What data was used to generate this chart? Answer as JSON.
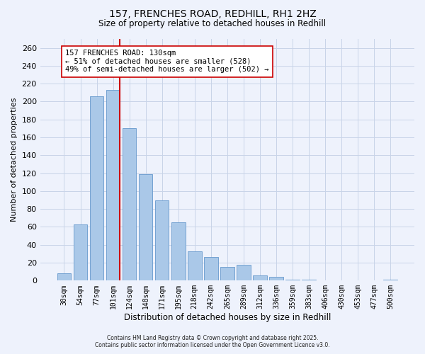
{
  "title1": "157, FRENCHES ROAD, REDHILL, RH1 2HZ",
  "title2": "Size of property relative to detached houses in Redhill",
  "xlabel": "Distribution of detached houses by size in Redhill",
  "ylabel": "Number of detached properties",
  "bar_labels": [
    "30sqm",
    "54sqm",
    "77sqm",
    "101sqm",
    "124sqm",
    "148sqm",
    "171sqm",
    "195sqm",
    "218sqm",
    "242sqm",
    "265sqm",
    "289sqm",
    "312sqm",
    "336sqm",
    "359sqm",
    "383sqm",
    "406sqm",
    "430sqm",
    "453sqm",
    "477sqm",
    "500sqm"
  ],
  "bar_values": [
    8,
    63,
    206,
    213,
    170,
    119,
    90,
    65,
    33,
    26,
    15,
    18,
    6,
    4,
    1,
    1,
    0,
    0,
    0,
    0,
    1
  ],
  "bar_color": "#aac8e8",
  "bar_edge_color": "#6699cc",
  "ylim": [
    0,
    270
  ],
  "yticks": [
    0,
    20,
    40,
    60,
    80,
    100,
    120,
    140,
    160,
    180,
    200,
    220,
    240,
    260
  ],
  "property_label": "157 FRENCHES ROAD: 130sqm",
  "annotation_line1": "← 51% of detached houses are smaller (528)",
  "annotation_line2": "49% of semi-detached houses are larger (502) →",
  "vline_color": "#cc0000",
  "annotation_box_color": "#ffffff",
  "grid_color": "#c8d4e8",
  "bg_color": "#eef2fc",
  "footnote1": "Contains HM Land Registry data © Crown copyright and database right 2025.",
  "footnote2": "Contains public sector information licensed under the Open Government Licence v3.0."
}
